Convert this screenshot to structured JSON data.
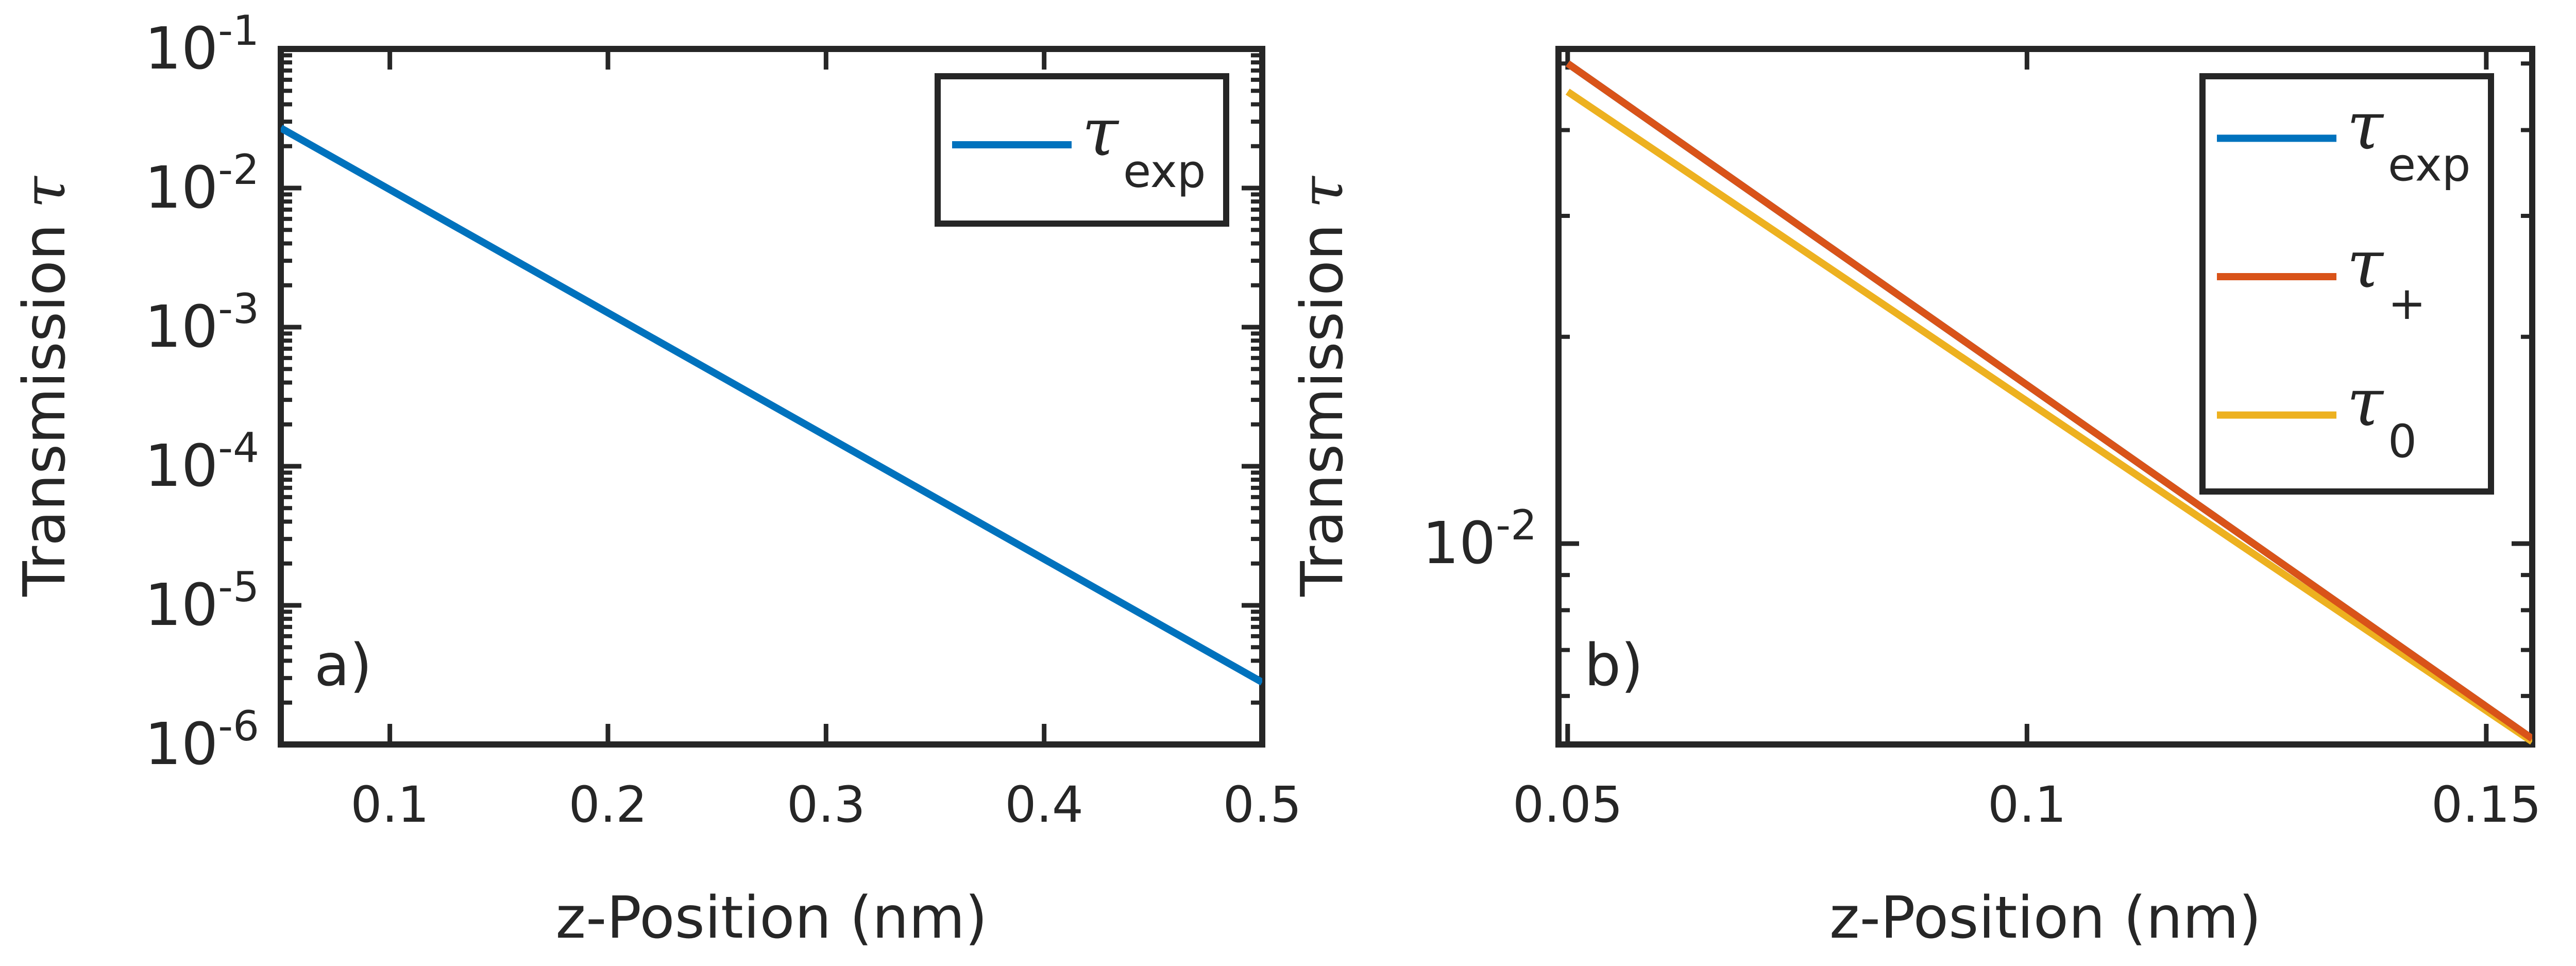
{
  "colors": {
    "exp": "#0072BD",
    "plus": "#D95319",
    "zero": "#EDB120",
    "axis": "#262626"
  },
  "chart_data": [
    {
      "type": "line",
      "panel_label": "a)",
      "xlabel": "z-Position (nm)",
      "ylabel_text": "Transmission",
      "ylabel_symbol": "τ",
      "yscale": "log",
      "xlim": [
        0.05,
        0.5
      ],
      "ylim": [
        1e-06,
        0.1
      ],
      "xticks": [
        0.1,
        0.2,
        0.3,
        0.4,
        0.5
      ],
      "xtick_labels": [
        "0.1",
        "0.2",
        "0.3",
        "0.4",
        "0.5"
      ],
      "yticks": [
        {
          "value": 1e-06,
          "base": "10",
          "exp": "-6"
        },
        {
          "value": 1e-05,
          "base": "10",
          "exp": "-5"
        },
        {
          "value": 0.0001,
          "base": "10",
          "exp": "-4"
        },
        {
          "value": 0.001,
          "base": "10",
          "exp": "-3"
        },
        {
          "value": 0.01,
          "base": "10",
          "exp": "-2"
        },
        {
          "value": 0.1,
          "base": "10",
          "exp": "-1"
        }
      ],
      "legend_position": "top-right",
      "series": [
        {
          "name": "exp",
          "symbol": "τ",
          "sub": "exp",
          "color_key": "exp",
          "x": [
            0.05,
            0.5
          ],
          "y": [
            0.027,
            2.8e-06
          ]
        }
      ]
    },
    {
      "type": "line",
      "panel_label": "b)",
      "xlabel": "z-Position (nm)",
      "ylabel_text": "Transmission",
      "ylabel_symbol": "τ",
      "yscale": "log",
      "xlim": [
        0.049,
        0.155
      ],
      "ylim": [
        0.0051,
        0.0525
      ],
      "xticks": [
        0.05,
        0.1,
        0.15
      ],
      "xtick_labels": [
        "0.05",
        "0.1",
        "0.15"
      ],
      "yticks": [
        {
          "value": 0.01,
          "base": "10",
          "exp": "-2"
        }
      ],
      "legend_position": "top-right",
      "series": [
        {
          "name": "exp",
          "symbol": "τ",
          "sub": "exp",
          "color_key": "exp",
          "x": [
            0.05,
            0.155
          ],
          "y": [
            0.05,
            0.0052
          ]
        },
        {
          "name": "plus",
          "symbol": "τ",
          "sub": "+",
          "color_key": "plus",
          "x": [
            0.05,
            0.155
          ],
          "y": [
            0.05,
            0.0052
          ]
        },
        {
          "name": "zero",
          "symbol": "τ",
          "sub": "0",
          "color_key": "zero",
          "x": [
            0.05,
            0.155
          ],
          "y": [
            0.0455,
            0.00515
          ]
        }
      ]
    }
  ]
}
